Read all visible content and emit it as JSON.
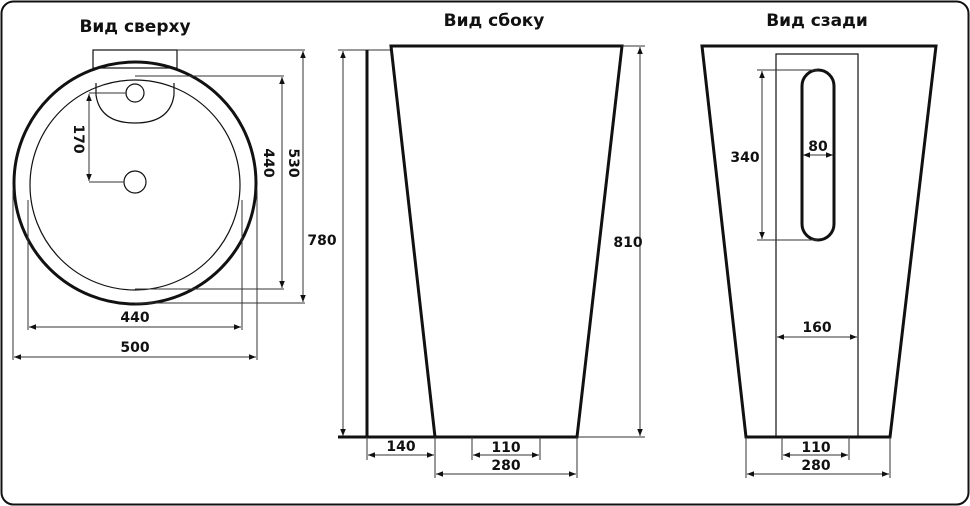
{
  "views": {
    "top": {
      "title": "Вид сверху",
      "dims": {
        "hole_spacing": "170",
        "inner_depth": "440",
        "outer_depth": "530",
        "inner_width": "440",
        "outer_width": "500"
      }
    },
    "side": {
      "title": "Вид сбоку",
      "dims": {
        "height_back": "780",
        "height_front": "810",
        "back_offset": "140",
        "base_inner": "110",
        "base_width": "280"
      }
    },
    "back": {
      "title": "Вид сзади",
      "dims": {
        "slot_height": "340",
        "slot_width": "80",
        "panel_width": "160",
        "base_inner": "110",
        "base_width": "280"
      }
    }
  },
  "colors": {
    "line": "#111111",
    "background": "#ffffff"
  }
}
